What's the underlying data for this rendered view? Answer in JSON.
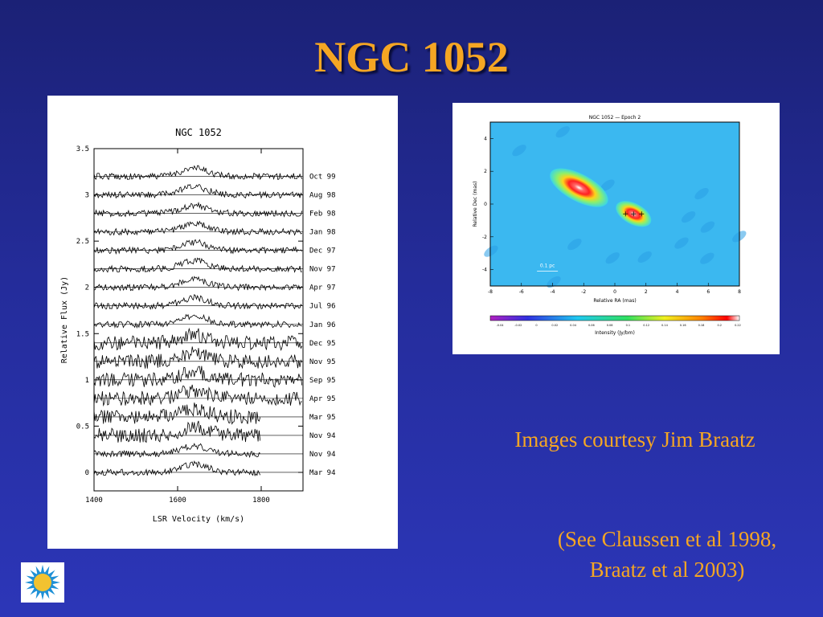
{
  "slide": {
    "title": "NGC 1052",
    "credit": "Images courtesy Jim Braatz",
    "refs_line1": "(See Claussen et al 1998,",
    "refs_line2": "Braatz et al 2003)",
    "colors": {
      "accent": "#f5a623",
      "background": "#242c9a",
      "logo": "#1e90d6"
    },
    "logo_icon": "sun-icon"
  },
  "chart_data": [
    {
      "type": "line",
      "title": "NGC 1052",
      "xlabel": "LSR Velocity (km/s)",
      "ylabel": "Relative Flux (Jy)",
      "xlim": [
        1400,
        1900
      ],
      "ylim": [
        -0.2,
        3.5
      ],
      "x_ticks": [
        "1400",
        "1600",
        "1800"
      ],
      "y_ticks": [
        "0",
        "0.5",
        "1",
        "1.5",
        "2",
        "2.5",
        "3",
        "3.5"
      ],
      "series": [
        {
          "name": "Oct 99",
          "offset": 3.2
        },
        {
          "name": "Aug 98",
          "offset": 3.0
        },
        {
          "name": "Feb 98",
          "offset": 2.8
        },
        {
          "name": "Jan 98",
          "offset": 2.6
        },
        {
          "name": "Dec 97",
          "offset": 2.4
        },
        {
          "name": "Nov 97",
          "offset": 2.2
        },
        {
          "name": "Apr 97",
          "offset": 2.0
        },
        {
          "name": "Jul 96",
          "offset": 1.8
        },
        {
          "name": "Jan 96",
          "offset": 1.6
        },
        {
          "name": "Dec 95",
          "offset": 1.4
        },
        {
          "name": "Nov 95",
          "offset": 1.2
        },
        {
          "name": "Sep 95",
          "offset": 1.0
        },
        {
          "name": "Apr 95",
          "offset": 0.8
        },
        {
          "name": "Mar 95",
          "offset": 0.6
        },
        {
          "name": "Nov 94",
          "offset": 0.4
        },
        {
          "name": "Nov 94",
          "offset": 0.2
        },
        {
          "name": "Mar 94",
          "offset": 0.0
        }
      ],
      "grid": false
    },
    {
      "type": "heatmap",
      "title": "NGC 1052 — Epoch 2",
      "xlabel": "Relative RA (mas)",
      "ylabel": "Relative Dec (mas)",
      "colorbar_label": "Intensity (Jy/bm)",
      "xlim": [
        -8,
        8
      ],
      "ylim": [
        -5,
        5
      ],
      "x_ticks": [
        "-8",
        "-6",
        "-4",
        "-2",
        "0",
        "2",
        "4",
        "6",
        "8"
      ],
      "y_ticks": [
        "4",
        "2",
        "0",
        "-2",
        "-4"
      ],
      "scale_bar_label": "0.1 pc",
      "colorbar_ticks": [
        "-0.04",
        "-0.02",
        "0",
        "0.02",
        "0.04",
        "0.06",
        "0.08",
        "0.1",
        "0.12",
        "0.14",
        "0.16",
        "0.18",
        "0.2",
        "0.22"
      ],
      "sources": [
        {
          "ra": -2.3,
          "dec": 1.0,
          "peak": 0.22
        },
        {
          "ra": 1.2,
          "dec": -0.6,
          "peak": 0.16
        }
      ]
    }
  ]
}
